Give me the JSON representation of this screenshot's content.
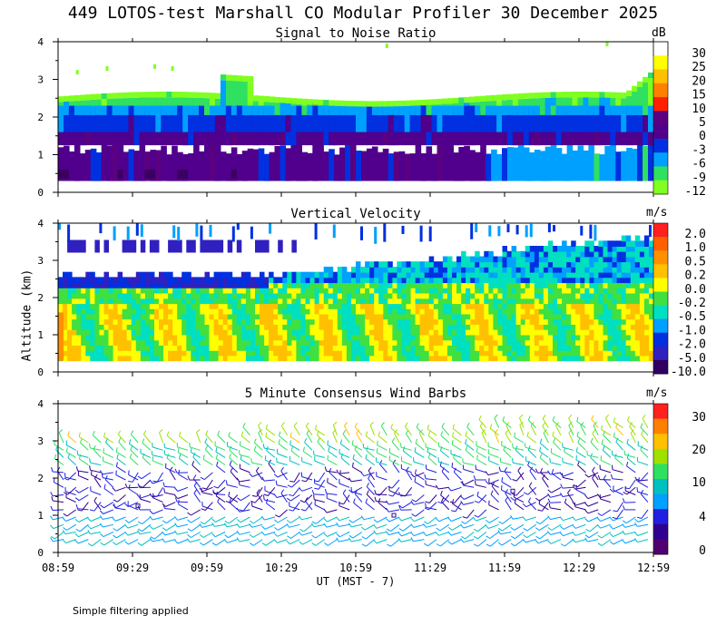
{
  "header": {
    "title": "449 LOTOS-test Marshall CO Modular Profiler 30 December 2025",
    "y_axis_label": "Altitude (km)",
    "x_axis_label": "UT  (MST - 7)",
    "footnote": "Simple filtering applied"
  },
  "chart_data": [
    {
      "type": "heatmap",
      "title": "Signal to Noise Ratio",
      "unit": "dB",
      "xlabel": "UT  (MST - 7)",
      "ylabel": "Altitude (km)",
      "ylim": [
        0,
        4
      ],
      "yticks": [
        "0",
        "1",
        "2",
        "3",
        "4"
      ],
      "colorbar": {
        "labels": [
          "30",
          "25",
          "20",
          "15",
          "10",
          "5",
          "0",
          "-3",
          "-6",
          "-9",
          "-12"
        ],
        "colors": [
          "#ffffff",
          "#ffff00",
          "#ffc000",
          "#ff8000",
          "#ff2000",
          "#5a0080",
          "#50008c",
          "#0030e0",
          "#00a0ff",
          "#30e060",
          "#80ff20"
        ]
      },
      "layers": [
        {
          "name": "snr_low_boundary_layer",
          "from_km": 0.3,
          "to_km": 1.5,
          "level": "0"
        },
        {
          "name": "snr_mid",
          "from_km": 1.5,
          "to_km": 2.0,
          "level": "-3"
        },
        {
          "name": "snr_top",
          "from_km": 2.0,
          "to_km": 2.7,
          "level": "-9"
        }
      ]
    },
    {
      "type": "heatmap",
      "title": "Vertical Velocity",
      "unit": "m/s",
      "xlabel": "UT  (MST - 7)",
      "ylabel": "Altitude (km)",
      "ylim": [
        0,
        4
      ],
      "yticks": [
        "0",
        "1",
        "2",
        "3",
        "4"
      ],
      "colorbar": {
        "labels": [
          "2.0",
          "1.0",
          "0.5",
          "0.2",
          "0.0",
          "-0.2",
          "-0.5",
          "-1.0",
          "-2.0",
          "-5.0",
          "-10.0"
        ],
        "colors": [
          "#ff2020",
          "#ff6000",
          "#ff9000",
          "#ffc000",
          "#ffff00",
          "#40e040",
          "#00e0c0",
          "#00a0ff",
          "#0030e0",
          "#3020c0",
          "#300060"
        ]
      }
    },
    {
      "type": "scatter",
      "title": "5 Minute Consensus Wind Barbs",
      "unit": "m/s",
      "xlabel": "UT  (MST - 7)",
      "ylabel": "Altitude (km)",
      "ylim": [
        0,
        4
      ],
      "yticks": [
        "0",
        "1",
        "2",
        "3",
        "4"
      ],
      "colorbar": {
        "labels": [
          "30",
          "20",
          "10",
          "4",
          "0"
        ],
        "colors": [
          "#ff2020",
          "#ff8000",
          "#ffc000",
          "#a0e000",
          "#30e060",
          "#00c0c0",
          "#00a0ff",
          "#2020e0",
          "#300090",
          "#500070"
        ]
      }
    }
  ],
  "x_axis": {
    "range_utc": [
      "08:59",
      "12:59"
    ],
    "ticks": [
      "08:59",
      "09:29",
      "09:59",
      "10:29",
      "10:59",
      "11:29",
      "11:59",
      "12:29",
      "12:59"
    ]
  }
}
